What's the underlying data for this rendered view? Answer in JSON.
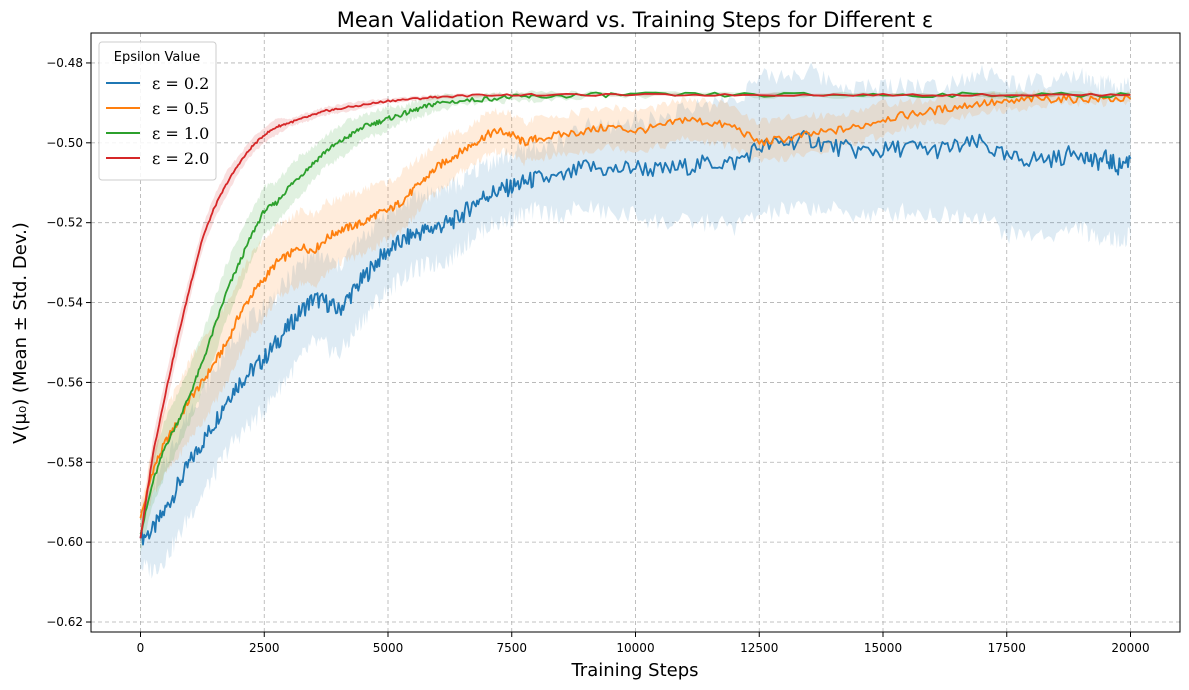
{
  "chart_data": {
    "type": "line",
    "title": "Mean Validation Reward vs. Training Steps for Different ε",
    "xlabel": "Training Steps",
    "ylabel": "V(μ₀) (Mean ± Std. Dev.)",
    "xlim": [
      -1000,
      21000
    ],
    "ylim": [
      -0.6225,
      -0.4725
    ],
    "xticks": [
      0,
      2500,
      5000,
      7500,
      10000,
      12500,
      15000,
      17500,
      20000
    ],
    "xtick_labels": [
      "0",
      "2500",
      "5000",
      "7500",
      "10000",
      "12500",
      "15000",
      "17500",
      "20000"
    ],
    "yticks": [
      -0.62,
      -0.6,
      -0.58,
      -0.56,
      -0.54,
      -0.52,
      -0.5,
      -0.48
    ],
    "ytick_labels": [
      "−0.62",
      "−0.60",
      "−0.58",
      "−0.56",
      "−0.54",
      "−0.52",
      "−0.50",
      "−0.48"
    ],
    "grid": true,
    "legend": {
      "title": "Epsilon Value",
      "position": "top-left"
    },
    "series": [
      {
        "name": "ε = 0.2",
        "color": "#1f77b4",
        "x": [
          0,
          250,
          500,
          750,
          1000,
          1250,
          1500,
          1750,
          2000,
          2250,
          2500,
          2750,
          3000,
          3250,
          3500,
          3750,
          4000,
          4250,
          4500,
          4750,
          5000,
          5250,
          5500,
          5750,
          6000,
          6250,
          6500,
          6750,
          7000,
          7250,
          7500,
          7750,
          8000,
          8500,
          9000,
          9500,
          10000,
          10500,
          11000,
          11500,
          12000,
          12500,
          13000,
          13500,
          14000,
          14500,
          15000,
          15500,
          16000,
          16500,
          17000,
          17500,
          18000,
          18500,
          19000,
          19250,
          19500,
          19750,
          20000
        ],
        "mean": [
          -0.599,
          -0.597,
          -0.592,
          -0.586,
          -0.58,
          -0.575,
          -0.57,
          -0.564,
          -0.56,
          -0.557,
          -0.554,
          -0.55,
          -0.546,
          -0.542,
          -0.539,
          -0.54,
          -0.542,
          -0.538,
          -0.534,
          -0.53,
          -0.527,
          -0.525,
          -0.523,
          -0.522,
          -0.521,
          -0.52,
          -0.518,
          -0.515,
          -0.513,
          -0.512,
          -0.511,
          -0.51,
          -0.509,
          -0.509,
          -0.506,
          -0.507,
          -0.506,
          -0.507,
          -0.506,
          -0.505,
          -0.505,
          -0.501,
          -0.5,
          -0.499,
          -0.501,
          -0.502,
          -0.502,
          -0.501,
          -0.502,
          -0.501,
          -0.5,
          -0.504,
          -0.504,
          -0.504,
          -0.502,
          -0.505,
          -0.504,
          -0.506,
          -0.504
        ],
        "std": [
          0.007,
          0.01,
          0.012,
          0.013,
          0.013,
          0.013,
          0.013,
          0.013,
          0.013,
          0.013,
          0.013,
          0.012,
          0.012,
          0.012,
          0.011,
          0.011,
          0.011,
          0.011,
          0.01,
          0.01,
          0.01,
          0.009,
          0.009,
          0.009,
          0.009,
          0.009,
          0.008,
          0.008,
          0.008,
          0.008,
          0.008,
          0.008,
          0.008,
          0.009,
          0.01,
          0.011,
          0.012,
          0.013,
          0.014,
          0.015,
          0.016,
          0.017,
          0.017,
          0.017,
          0.016,
          0.016,
          0.016,
          0.016,
          0.016,
          0.017,
          0.018,
          0.019,
          0.019,
          0.019,
          0.019,
          0.019,
          0.019,
          0.019,
          0.019
        ]
      },
      {
        "name": "ε = 0.5",
        "color": "#ff7f0e",
        "x": [
          0,
          250,
          500,
          750,
          1000,
          1250,
          1500,
          1750,
          2000,
          2250,
          2500,
          2750,
          3000,
          3250,
          3500,
          3750,
          4000,
          4250,
          4500,
          4750,
          5000,
          5250,
          5500,
          5750,
          6000,
          6250,
          6500,
          6750,
          7000,
          7250,
          7500,
          7750,
          8000,
          8500,
          9000,
          9500,
          10000,
          10500,
          11000,
          11500,
          12000,
          12500,
          13000,
          13500,
          14000,
          14500,
          15000,
          15500,
          16000,
          16500,
          17000,
          17500,
          18000,
          18500,
          19000,
          19500,
          20000
        ],
        "mean": [
          -0.594,
          -0.582,
          -0.575,
          -0.57,
          -0.564,
          -0.56,
          -0.555,
          -0.55,
          -0.543,
          -0.538,
          -0.534,
          -0.53,
          -0.528,
          -0.526,
          -0.527,
          -0.524,
          -0.522,
          -0.521,
          -0.52,
          -0.518,
          -0.517,
          -0.515,
          -0.512,
          -0.509,
          -0.506,
          -0.504,
          -0.502,
          -0.5,
          -0.498,
          -0.497,
          -0.498,
          -0.5,
          -0.499,
          -0.498,
          -0.497,
          -0.496,
          -0.497,
          -0.496,
          -0.494,
          -0.495,
          -0.496,
          -0.5,
          -0.499,
          -0.498,
          -0.497,
          -0.496,
          -0.494,
          -0.493,
          -0.492,
          -0.491,
          -0.49,
          -0.49,
          -0.489,
          -0.489,
          -0.489,
          -0.489,
          -0.489
        ],
        "std": [
          0.003,
          0.006,
          0.008,
          0.009,
          0.01,
          0.01,
          0.01,
          0.01,
          0.01,
          0.01,
          0.01,
          0.009,
          0.009,
          0.009,
          0.009,
          0.009,
          0.008,
          0.008,
          0.008,
          0.008,
          0.007,
          0.007,
          0.007,
          0.006,
          0.006,
          0.006,
          0.005,
          0.005,
          0.005,
          0.005,
          0.005,
          0.005,
          0.005,
          0.005,
          0.005,
          0.005,
          0.005,
          0.005,
          0.005,
          0.005,
          0.005,
          0.005,
          0.005,
          0.005,
          0.004,
          0.004,
          0.004,
          0.003,
          0.003,
          0.003,
          0.002,
          0.002,
          0.002,
          0.001,
          0.001,
          0.001,
          0.001
        ]
      },
      {
        "name": "ε = 1.0",
        "color": "#2ca02c",
        "x": [
          0,
          250,
          500,
          750,
          1000,
          1250,
          1500,
          1750,
          2000,
          2250,
          2500,
          2750,
          3000,
          3250,
          3500,
          3750,
          4000,
          4250,
          4500,
          4750,
          5000,
          5250,
          5500,
          5750,
          6000,
          6500,
          7000,
          7500,
          8000,
          9000,
          10000,
          12000,
          14000,
          16000,
          18000,
          20000
        ],
        "mean": [
          -0.598,
          -0.585,
          -0.576,
          -0.57,
          -0.563,
          -0.555,
          -0.546,
          -0.537,
          -0.53,
          -0.523,
          -0.517,
          -0.515,
          -0.511,
          -0.508,
          -0.505,
          -0.502,
          -0.5,
          -0.498,
          -0.496,
          -0.495,
          -0.494,
          -0.493,
          -0.492,
          -0.491,
          -0.49,
          -0.4895,
          -0.489,
          -0.4885,
          -0.4885,
          -0.488,
          -0.488,
          -0.488,
          -0.488,
          -0.488,
          -0.488,
          -0.488
        ],
        "std": [
          0.004,
          0.006,
          0.007,
          0.007,
          0.007,
          0.007,
          0.007,
          0.007,
          0.007,
          0.006,
          0.006,
          0.005,
          0.005,
          0.005,
          0.004,
          0.004,
          0.004,
          0.004,
          0.003,
          0.003,
          0.003,
          0.002,
          0.002,
          0.002,
          0.002,
          0.001,
          0.001,
          0.001,
          0.001,
          0.0005,
          0.0005,
          0.0003,
          0.0003,
          0.0003,
          0.0003,
          0.0003
        ]
      },
      {
        "name": "ε = 2.0",
        "color": "#d62728",
        "x": [
          0,
          250,
          500,
          750,
          1000,
          1250,
          1500,
          1750,
          2000,
          2250,
          2500,
          2750,
          3000,
          3250,
          3500,
          3750,
          4000,
          4500,
          5000,
          5500,
          6000,
          7000,
          8000,
          10000,
          12000,
          14000,
          16000,
          18000,
          20000
        ],
        "mean": [
          -0.599,
          -0.578,
          -0.563,
          -0.549,
          -0.536,
          -0.524,
          -0.516,
          -0.51,
          -0.505,
          -0.501,
          -0.498,
          -0.496,
          -0.495,
          -0.494,
          -0.493,
          -0.492,
          -0.4915,
          -0.4905,
          -0.4895,
          -0.489,
          -0.4885,
          -0.488,
          -0.488,
          -0.488,
          -0.488,
          -0.488,
          -0.488,
          -0.488,
          -0.488
        ],
        "std": [
          0.002,
          0.004,
          0.004,
          0.004,
          0.003,
          0.003,
          0.003,
          0.003,
          0.002,
          0.002,
          0.002,
          0.002,
          0.001,
          0.001,
          0.001,
          0.001,
          0.001,
          0.001,
          0.0005,
          0.0005,
          0.0005,
          0.0003,
          0.0003,
          0.0003,
          0.0003,
          0.0003,
          0.0003,
          0.0003,
          0.0003
        ]
      }
    ]
  }
}
